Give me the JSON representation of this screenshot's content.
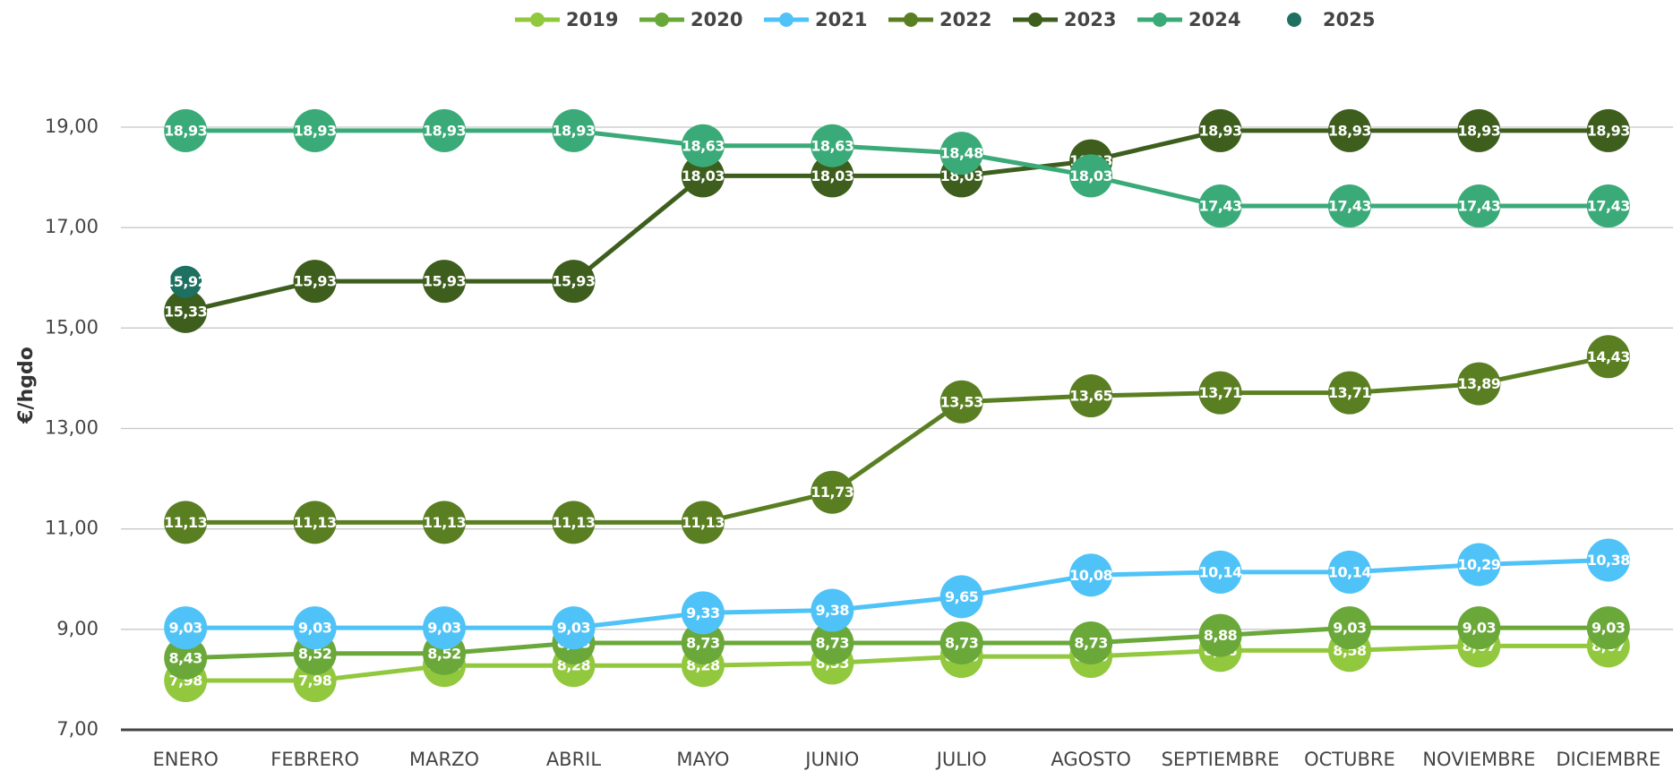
{
  "chart_data": {
    "type": "line",
    "y_label": "€/hgdo",
    "categories": [
      "ENERO",
      "FEBRERO",
      "MARZO",
      "ABRIL",
      "MAYO",
      "JUNIO",
      "JULIO",
      "AGOSTO",
      "SEPTIEMBRE",
      "OCTUBRE",
      "NOVIEMBRE",
      "DICIEMBRE"
    ],
    "ylim": [
      7,
      19
    ],
    "yticks": [
      {
        "value": 7,
        "label": "7,00"
      },
      {
        "value": 9,
        "label": "9,00"
      },
      {
        "value": 11,
        "label": "11,00"
      },
      {
        "value": 13,
        "label": "13,00"
      },
      {
        "value": 15,
        "label": "15,00"
      },
      {
        "value": 17,
        "label": "17,00"
      },
      {
        "value": 19,
        "label": "19,00"
      }
    ],
    "grid": true,
    "legend": "top",
    "series": [
      {
        "name": "2019",
        "color": "#92c83e",
        "show_line": true,
        "values": [
          7.98,
          7.98,
          8.28,
          8.28,
          8.28,
          8.33,
          8.46,
          8.46,
          8.58,
          8.58,
          8.67,
          8.67
        ],
        "value_labels": [
          "7,98",
          "7,98",
          "8,28",
          "8,28",
          "8,28",
          "8,33",
          "8,46",
          "8,46",
          "8,58",
          "8,58",
          "8,67",
          "8,67"
        ]
      },
      {
        "name": "2020",
        "color": "#6aa839",
        "show_line": true,
        "values": [
          8.43,
          8.52,
          8.52,
          8.73,
          8.73,
          8.73,
          8.73,
          8.73,
          8.88,
          9.03,
          9.03,
          9.03
        ],
        "value_labels": [
          "8,43",
          "8,52",
          "8,52",
          "8,73",
          "8,73",
          "8,73",
          "8,73",
          "8,73",
          "8,88",
          "9,03",
          "9,03",
          "9,03"
        ]
      },
      {
        "name": "2021",
        "color": "#4fc3f7",
        "show_line": true,
        "values": [
          9.03,
          9.03,
          9.03,
          9.03,
          9.33,
          9.38,
          9.65,
          10.08,
          10.14,
          10.14,
          10.29,
          10.38
        ],
        "value_labels": [
          "9,03",
          "9,03",
          "9,03",
          "9,03",
          "9,33",
          "9,38",
          "9,65",
          "10,08",
          "10,14",
          "10,14",
          "10,29",
          "10,38"
        ]
      },
      {
        "name": "2022",
        "color": "#5a7f22",
        "show_line": true,
        "values": [
          11.13,
          11.13,
          11.13,
          11.13,
          11.13,
          11.73,
          13.53,
          13.65,
          13.71,
          13.71,
          13.89,
          14.43
        ],
        "value_labels": [
          "11,13",
          "11,13",
          "11,13",
          "11,13",
          "11,13",
          "11,73",
          "13,53",
          "13,65",
          "13,71",
          "13,71",
          "13,89",
          "14,43"
        ]
      },
      {
        "name": "2023",
        "color": "#3d5e1d",
        "show_line": true,
        "values": [
          15.33,
          15.93,
          15.93,
          15.93,
          18.03,
          18.03,
          18.03,
          18.33,
          18.93,
          18.93,
          18.93,
          18.93
        ],
        "value_labels": [
          "15,33",
          "15,93",
          "15,93",
          "15,93",
          "18,03",
          "18,03",
          "18,03",
          "18,33",
          "18,93",
          "18,93",
          "18,93",
          "18,93"
        ]
      },
      {
        "name": "2024",
        "color": "#3aaa78",
        "show_line": true,
        "values": [
          18.93,
          18.93,
          18.93,
          18.93,
          18.63,
          18.63,
          18.48,
          18.03,
          17.43,
          17.43,
          17.43,
          17.43
        ],
        "value_labels": [
          "18,93",
          "18,93",
          "18,93",
          "18,93",
          "18,63",
          "18,63",
          "18,48",
          "18,03",
          "17,43",
          "17,43",
          "17,43",
          "17,43"
        ]
      },
      {
        "name": "2025",
        "color": "#1e7060",
        "show_line": false,
        "values": [
          15.92,
          null,
          null,
          null,
          null,
          null,
          null,
          null,
          null,
          null,
          null,
          null
        ],
        "value_labels": [
          "15,92",
          null,
          null,
          null,
          null,
          null,
          null,
          null,
          null,
          null,
          null,
          null
        ]
      }
    ]
  }
}
